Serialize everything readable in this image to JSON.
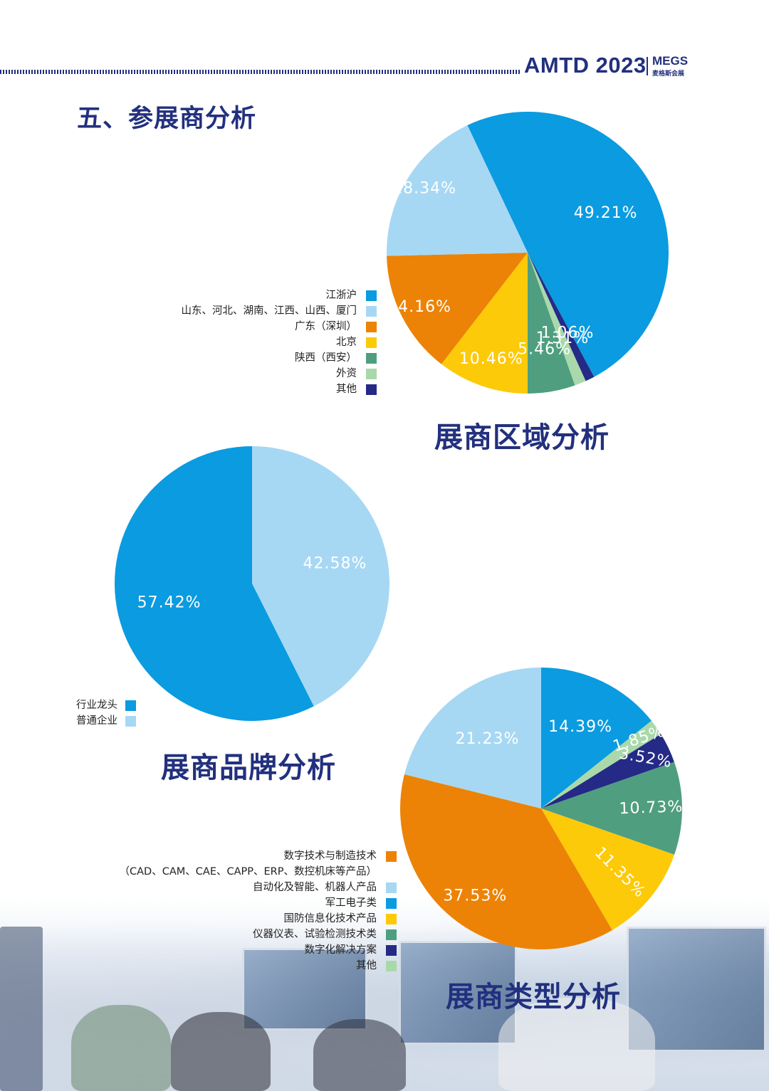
{
  "header": {
    "event": "AMTD 2023",
    "logo": "MEGS",
    "logo_sub": "麦格斯会展"
  },
  "section_title": "五、参展商分析",
  "chart_data": [
    {
      "type": "pie",
      "title": "展商区域分析",
      "series": [
        {
          "label": "江浙沪",
          "value": 49.21,
          "value_text": "49.21%",
          "color": "#0a9be0"
        },
        {
          "label": "山东、河北、湖南、江西、山西、厦门",
          "value": 18.34,
          "value_text": "18.34%",
          "color": "#a6d8f4"
        },
        {
          "label": "广东（深圳）",
          "value": 14.16,
          "value_text": "14.16%",
          "color": "#ec8306"
        },
        {
          "label": "北京",
          "value": 10.46,
          "value_text": "10.46%",
          "color": "#fdca09"
        },
        {
          "label": "陕西（西安）",
          "value": 5.46,
          "value_text": "5.46%",
          "color": "#4f9e80"
        },
        {
          "label": "外资",
          "value": 1.31,
          "value_text": "1.31%",
          "color": "#a9d9aa"
        },
        {
          "label": "其他",
          "value": 1.06,
          "value_text": "1.06%",
          "color": "#242a86"
        }
      ],
      "legend_position": "left"
    },
    {
      "type": "pie",
      "title": "展商品牌分析",
      "series": [
        {
          "label": "行业龙头",
          "value": 57.42,
          "value_text": "57.42%",
          "color": "#0a9be0"
        },
        {
          "label": "普通企业",
          "value": 42.58,
          "value_text": "42.58%",
          "color": "#a6d8f4"
        }
      ],
      "legend_position": "bottom-left"
    },
    {
      "type": "pie",
      "title": "展商类型分析",
      "series": [
        {
          "label": "数字技术与制造技术",
          "label_sub": "（CAD、CAM、CAE、CAPP、ERP、数控机床等产品）",
          "value": 37.53,
          "value_text": "37.53%",
          "color": "#ec8306"
        },
        {
          "label": "自动化及智能、机器人产品",
          "value": 21.23,
          "value_text": "21.23%",
          "color": "#a6d8f4"
        },
        {
          "label": "军工电子类",
          "value": 14.39,
          "value_text": "14.39%",
          "color": "#0a9be0"
        },
        {
          "label": "国防信息化技术产品",
          "value": 11.35,
          "value_text": "11.35%",
          "color": "#fdca09"
        },
        {
          "label": "仪器仪表、试验检测技术类",
          "value": 10.73,
          "value_text": "10.73%",
          "color": "#4f9e80"
        },
        {
          "label": "数字化解决方案",
          "value": 3.52,
          "value_text": "3.52%",
          "color": "#242a86"
        },
        {
          "label": "其他",
          "value": 1.85,
          "value_text": "1.85%",
          "color": "#a9d9aa"
        }
      ],
      "legend_position": "left"
    }
  ]
}
